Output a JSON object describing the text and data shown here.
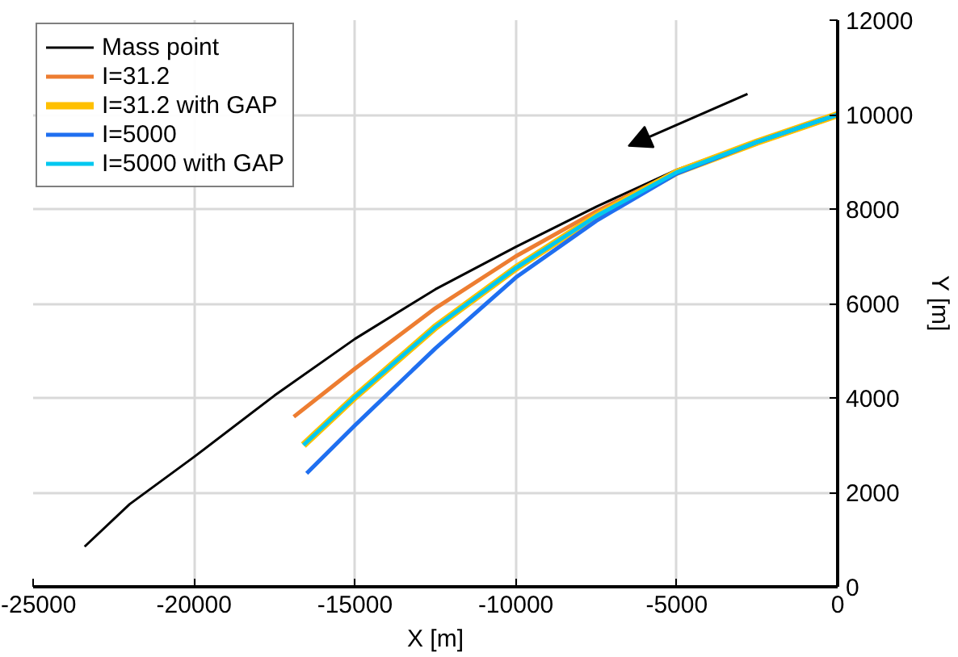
{
  "chart_data": {
    "type": "line",
    "xlabel": "X [m]",
    "ylabel": "Y [m]",
    "xlim": [
      -25000,
      0
    ],
    "xticks": [
      -25000,
      -20000,
      -15000,
      -10000,
      -5000,
      0
    ],
    "ylim": [
      0,
      12000
    ],
    "yticks": [
      0,
      2000,
      4000,
      6000,
      8000,
      10000,
      12000
    ],
    "grid": true,
    "legend": "top left",
    "line_style": "solid",
    "marker": "none",
    "series": [
      {
        "name": "Mass point",
        "color": "#000000",
        "x": [
          -23400,
          -22000,
          -20000,
          -17500,
          -15000,
          -12500,
          -10000,
          -7500,
          -5000,
          -2500,
          0
        ],
        "values": [
          850,
          1750,
          2750,
          4050,
          5250,
          6300,
          7200,
          8050,
          8830,
          9450,
          10000
        ]
      },
      {
        "name": "I=31.2",
        "color": "#ed7d31",
        "x": [
          -16900,
          -15000,
          -12500,
          -10000,
          -7500,
          -5000,
          -2500,
          0
        ],
        "values": [
          3600,
          4620,
          5900,
          7000,
          7950,
          8800,
          9430,
          10000
        ]
      },
      {
        "name": "I=31.2 with GAP",
        "color": "#ffc000",
        "x": [
          -16600,
          -15000,
          -12500,
          -10000,
          -7500,
          -5000,
          -2500,
          0
        ],
        "values": [
          3000,
          4020,
          5500,
          6750,
          7850,
          8780,
          9420,
          10000
        ]
      },
      {
        "name": "I=5000",
        "color": "#1f6ff0",
        "x": [
          -16500,
          -15000,
          -12500,
          -10000,
          -7500,
          -5000,
          -2500,
          0
        ],
        "values": [
          2400,
          3420,
          5050,
          6550,
          7750,
          8750,
          9420,
          10000
        ]
      },
      {
        "name": "I=5000 with GAP",
        "color": "#00c8f0",
        "x": [
          -16600,
          -15000,
          -12500,
          -10000,
          -7500,
          -5000,
          -2500,
          0
        ],
        "values": [
          3000,
          4020,
          5500,
          6750,
          7850,
          8780,
          9420,
          10000
        ]
      }
    ]
  }
}
